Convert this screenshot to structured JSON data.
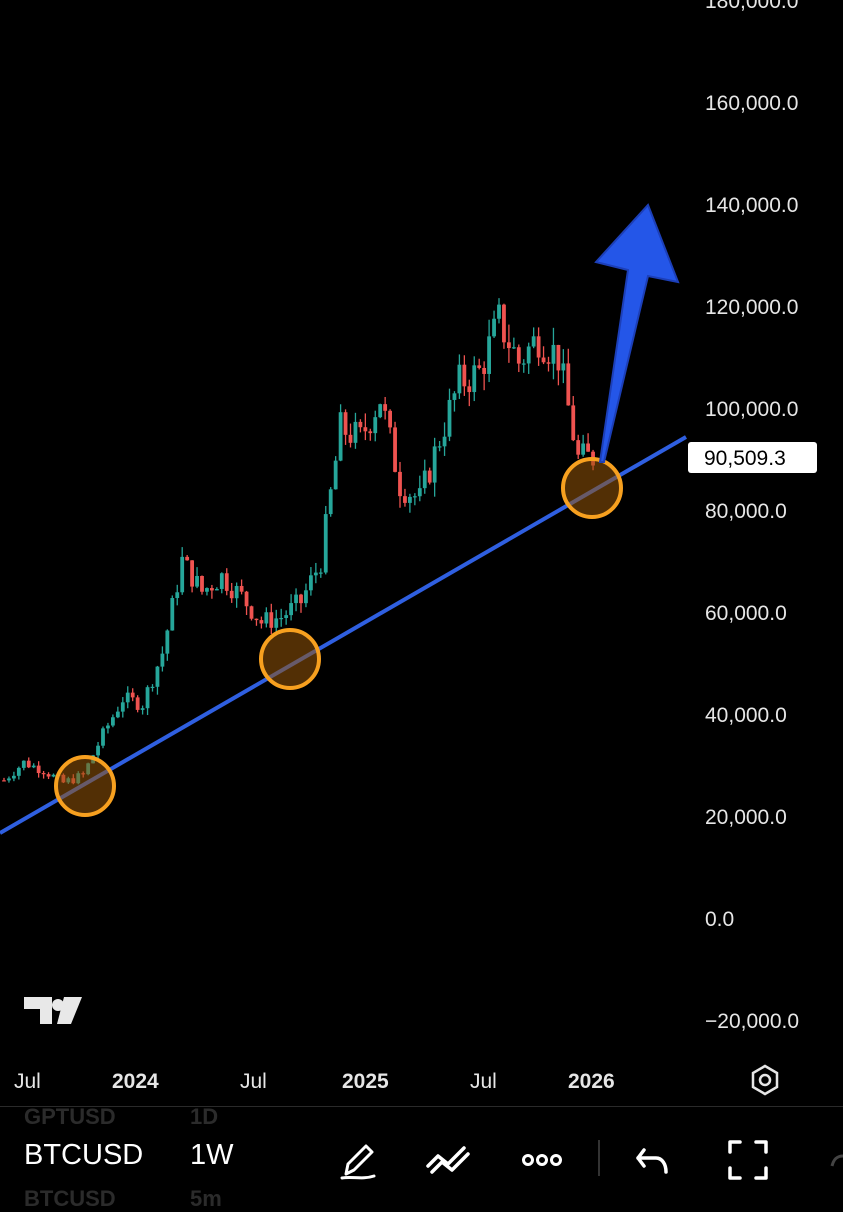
{
  "chart_data": {
    "type": "candlestick",
    "symbol": "BTCUSD",
    "timeframe": "1W",
    "y_ticks": [
      "180,000.0",
      "160,000.0",
      "140,000.0",
      "120,000.0",
      "100,000.0",
      "80,000.0",
      "60,000.0",
      "40,000.0",
      "20,000.0",
      "0.0",
      "−20,000.0"
    ],
    "ylim": [
      -20000,
      180000
    ],
    "x_ticks": [
      {
        "label": "Jul",
        "bold": false
      },
      {
        "label": "2024",
        "bold": true
      },
      {
        "label": "Jul",
        "bold": false
      },
      {
        "label": "2025",
        "bold": true
      },
      {
        "label": "Jul",
        "bold": false
      },
      {
        "label": "2026",
        "bold": true
      }
    ],
    "last_price": "90,509.3",
    "up_color": "#26a69a",
    "down_color": "#ef5350",
    "trendline_color": "#2f5fe0",
    "circle_color": "#f7a01f",
    "arrow_color": "#2456e8",
    "series": [
      {
        "date": "2023-06",
        "close": 27000
      },
      {
        "date": "2023-07",
        "close": 30500
      },
      {
        "date": "2023-08",
        "close": 29000
      },
      {
        "date": "2023-09",
        "close": 26500
      },
      {
        "date": "2023-10",
        "close": 28000
      },
      {
        "date": "2023-11",
        "close": 36000
      },
      {
        "date": "2023-12",
        "close": 43000
      },
      {
        "date": "2024-01",
        "close": 42000
      },
      {
        "date": "2024-02",
        "close": 52000
      },
      {
        "date": "2024-03",
        "close": 70000
      },
      {
        "date": "2024-04",
        "close": 64000
      },
      {
        "date": "2024-05",
        "close": 67000
      },
      {
        "date": "2024-06",
        "close": 63000
      },
      {
        "date": "2024-07",
        "close": 58000
      },
      {
        "date": "2024-08",
        "close": 59000
      },
      {
        "date": "2024-09",
        "close": 62000
      },
      {
        "date": "2024-10",
        "close": 70000
      },
      {
        "date": "2024-11",
        "close": 96000
      },
      {
        "date": "2024-12",
        "close": 94000
      },
      {
        "date": "2025-01",
        "close": 102000
      },
      {
        "date": "2025-02",
        "close": 85000
      },
      {
        "date": "2025-03",
        "close": 82000
      },
      {
        "date": "2025-04",
        "close": 94000
      },
      {
        "date": "2025-05",
        "close": 105000
      },
      {
        "date": "2025-06",
        "close": 107000
      },
      {
        "date": "2025-07",
        "close": 117000
      },
      {
        "date": "2025-08",
        "close": 109000
      },
      {
        "date": "2025-09",
        "close": 114000
      },
      {
        "date": "2025-10",
        "close": 110000
      },
      {
        "date": "2025-11",
        "close": 90000
      },
      {
        "date": "2025-12",
        "close": 90509
      }
    ]
  },
  "toolbar": {
    "symbol": "BTCUSD",
    "timeframe": "1W",
    "ghost_symbol_above": "GPTUSD",
    "ghost_tf_above": "1D",
    "ghost_symbol_below": "BTCUSD",
    "ghost_tf_below": "5m",
    "icons": [
      "pencil-icon",
      "trend-tools-icon",
      "more-dots-icon",
      "undo-icon",
      "fullscreen-icon"
    ]
  }
}
